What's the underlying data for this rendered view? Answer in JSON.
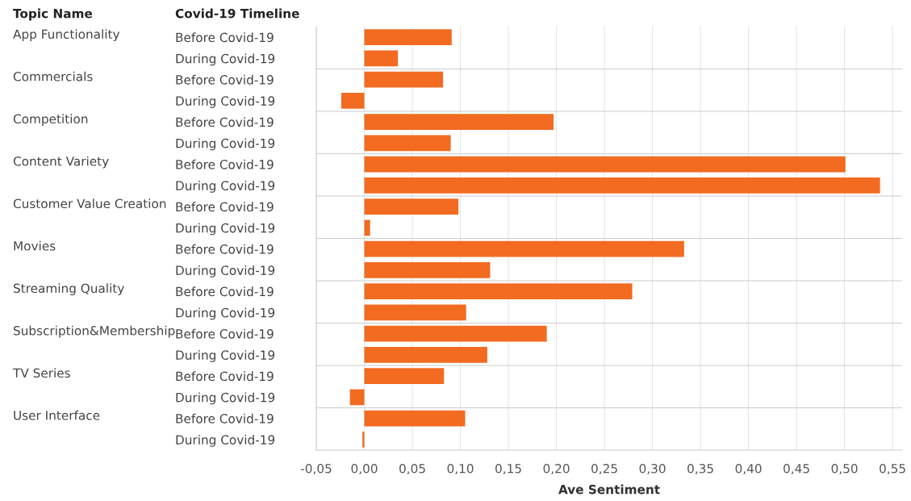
{
  "chart_data": {
    "type": "bar",
    "orientation": "horizontal",
    "xlabel": "Ave Sentiment",
    "annotations": [
      "Topic Name",
      "Covid-19 Timeline",
      "App Functionality",
      "Commercials",
      "Competition",
      "Content Variety",
      "Customer Value Creation",
      "Movies",
      "Streaming Quality",
      "Subscription&Membership",
      "TV Series",
      "User Interface"
    ],
    "categories": [
      "Before Covid-19",
      "During Covid-19",
      "Before Covid-19",
      "During Covid-19",
      "Before Covid-19",
      "During Covid-19",
      "Before Covid-19",
      "During Covid-19",
      "Before Covid-19",
      "During Covid-19",
      "Before Covid-19",
      "During Covid-19",
      "Before Covid-19",
      "During Covid-19",
      "Before Covid-19",
      "During Covid-19",
      "Before Covid-19",
      "During Covid-19",
      "Before Covid-19",
      "During Covid-19"
    ],
    "color": "#f26b21",
    "values": [
      0.091,
      0.035,
      0.082,
      -0.024,
      0.197,
      0.09,
      0.501,
      0.537,
      0.098,
      0.006,
      0.333,
      0.131,
      0.279,
      0.106,
      0.19,
      0.128,
      0.083,
      -0.015,
      0.105,
      -0.002
    ],
    "xlim": [
      -0.05,
      0.56
    ],
    "xticks": [
      {
        "value": -0.05,
        "label": "-0,05"
      },
      {
        "value": 0,
        "label": "0,00"
      },
      {
        "value": 0.05,
        "label": "0,05"
      },
      {
        "value": 0.1,
        "label": "0,10"
      },
      {
        "value": 0.15,
        "label": "0,15"
      },
      {
        "value": 0.2,
        "label": "0,20"
      },
      {
        "value": 0.25,
        "label": "0,25"
      },
      {
        "value": 0.3,
        "label": "0,30"
      },
      {
        "value": 0.35,
        "label": "0,35"
      },
      {
        "value": 0.4,
        "label": "0,40"
      },
      {
        "value": 0.45,
        "label": "0,45"
      },
      {
        "value": 0.5,
        "label": "0,50"
      },
      {
        "value": 0.55,
        "label": "0,55"
      }
    ],
    "grid": "x"
  }
}
